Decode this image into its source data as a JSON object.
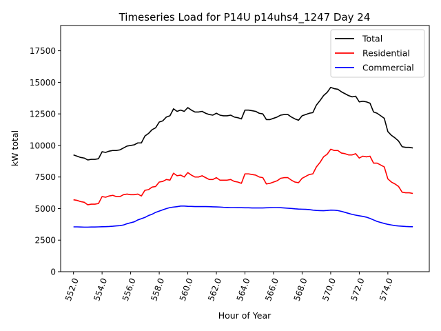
{
  "chart_data": {
    "type": "line",
    "title": "Timeseries Load for P14U p14uhs4_1247  Day 24",
    "xlabel": "Hour of Year",
    "ylabel": "kW total",
    "xlim": [
      551.1,
      576.9
    ],
    "ylim": [
      0,
      19500
    ],
    "xticks": [
      552,
      554,
      556,
      558,
      560,
      562,
      564,
      566,
      568,
      570,
      572,
      574
    ],
    "xtick_labels": [
      "552.0",
      "554.0",
      "556.0",
      "558.0",
      "560.0",
      "562.0",
      "564.0",
      "566.0",
      "568.0",
      "570.0",
      "572.0",
      "574.0"
    ],
    "yticks": [
      0,
      2500,
      5000,
      7500,
      10000,
      12500,
      15000,
      17500
    ],
    "ytick_labels": [
      "0",
      "2500",
      "5000",
      "7500",
      "10000",
      "12500",
      "15000",
      "17500"
    ],
    "grid": false,
    "legend_position": "top-right",
    "x_start": 552.0,
    "x_step": 0.25,
    "series": [
      {
        "name": "Total",
        "color": "#000000",
        "values": [
          9250,
          9150,
          9050,
          9000,
          8850,
          8900,
          8900,
          8950,
          9500,
          9450,
          9550,
          9600,
          9600,
          9650,
          9800,
          9950,
          10000,
          10050,
          10200,
          10200,
          10750,
          10950,
          11250,
          11400,
          11850,
          11950,
          12250,
          12350,
          12900,
          12700,
          12800,
          12700,
          13000,
          12800,
          12650,
          12650,
          12700,
          12550,
          12450,
          12400,
          12550,
          12400,
          12350,
          12350,
          12400,
          12250,
          12200,
          12100,
          12800,
          12800,
          12750,
          12700,
          12550,
          12500,
          12050,
          12050,
          12150,
          12250,
          12400,
          12450,
          12450,
          12250,
          12100,
          12000,
          12350,
          12450,
          12550,
          12600,
          13200,
          13550,
          13950,
          14200,
          14600,
          14500,
          14450,
          14250,
          14100,
          13950,
          13850,
          13900,
          13450,
          13500,
          13450,
          13350,
          12650,
          12550,
          12350,
          12150,
          11100,
          10800,
          10600,
          10350,
          9900,
          9850,
          9850,
          9800
        ]
      },
      {
        "name": "Residential",
        "color": "#ff0000",
        "values": [
          5700,
          5650,
          5550,
          5500,
          5300,
          5350,
          5350,
          5400,
          5950,
          5900,
          6000,
          6050,
          5950,
          5950,
          6100,
          6150,
          6100,
          6100,
          6150,
          6000,
          6450,
          6500,
          6700,
          6750,
          7100,
          7150,
          7300,
          7250,
          7800,
          7600,
          7650,
          7500,
          7850,
          7650,
          7500,
          7500,
          7600,
          7450,
          7300,
          7300,
          7450,
          7250,
          7250,
          7250,
          7300,
          7150,
          7100,
          7000,
          7750,
          7750,
          7700,
          7650,
          7500,
          7450,
          6950,
          7000,
          7100,
          7200,
          7400,
          7450,
          7450,
          7250,
          7100,
          7050,
          7400,
          7550,
          7700,
          7750,
          8300,
          8650,
          9100,
          9300,
          9700,
          9600,
          9600,
          9400,
          9350,
          9250,
          9250,
          9350,
          9000,
          9150,
          9100,
          9150,
          8600,
          8600,
          8450,
          8300,
          7350,
          7100,
          6950,
          6750,
          6300,
          6250,
          6250,
          6200
        ]
      },
      {
        "name": "Commercial",
        "color": "#0000ff",
        "values": [
          3550,
          3550,
          3540,
          3530,
          3530,
          3540,
          3540,
          3550,
          3560,
          3570,
          3580,
          3600,
          3630,
          3650,
          3700,
          3800,
          3880,
          3950,
          4100,
          4200,
          4300,
          4450,
          4550,
          4700,
          4800,
          4900,
          5000,
          5080,
          5120,
          5150,
          5200,
          5200,
          5180,
          5170,
          5160,
          5160,
          5160,
          5160,
          5150,
          5140,
          5130,
          5120,
          5100,
          5090,
          5080,
          5080,
          5070,
          5070,
          5060,
          5060,
          5050,
          5050,
          5050,
          5050,
          5060,
          5070,
          5080,
          5080,
          5070,
          5050,
          5030,
          5010,
          4980,
          4960,
          4950,
          4940,
          4920,
          4880,
          4850,
          4840,
          4830,
          4850,
          4880,
          4870,
          4840,
          4780,
          4700,
          4620,
          4540,
          4480,
          4430,
          4380,
          4320,
          4220,
          4100,
          3980,
          3900,
          3820,
          3750,
          3700,
          3650,
          3620,
          3600,
          3580,
          3570,
          3560
        ]
      }
    ]
  }
}
